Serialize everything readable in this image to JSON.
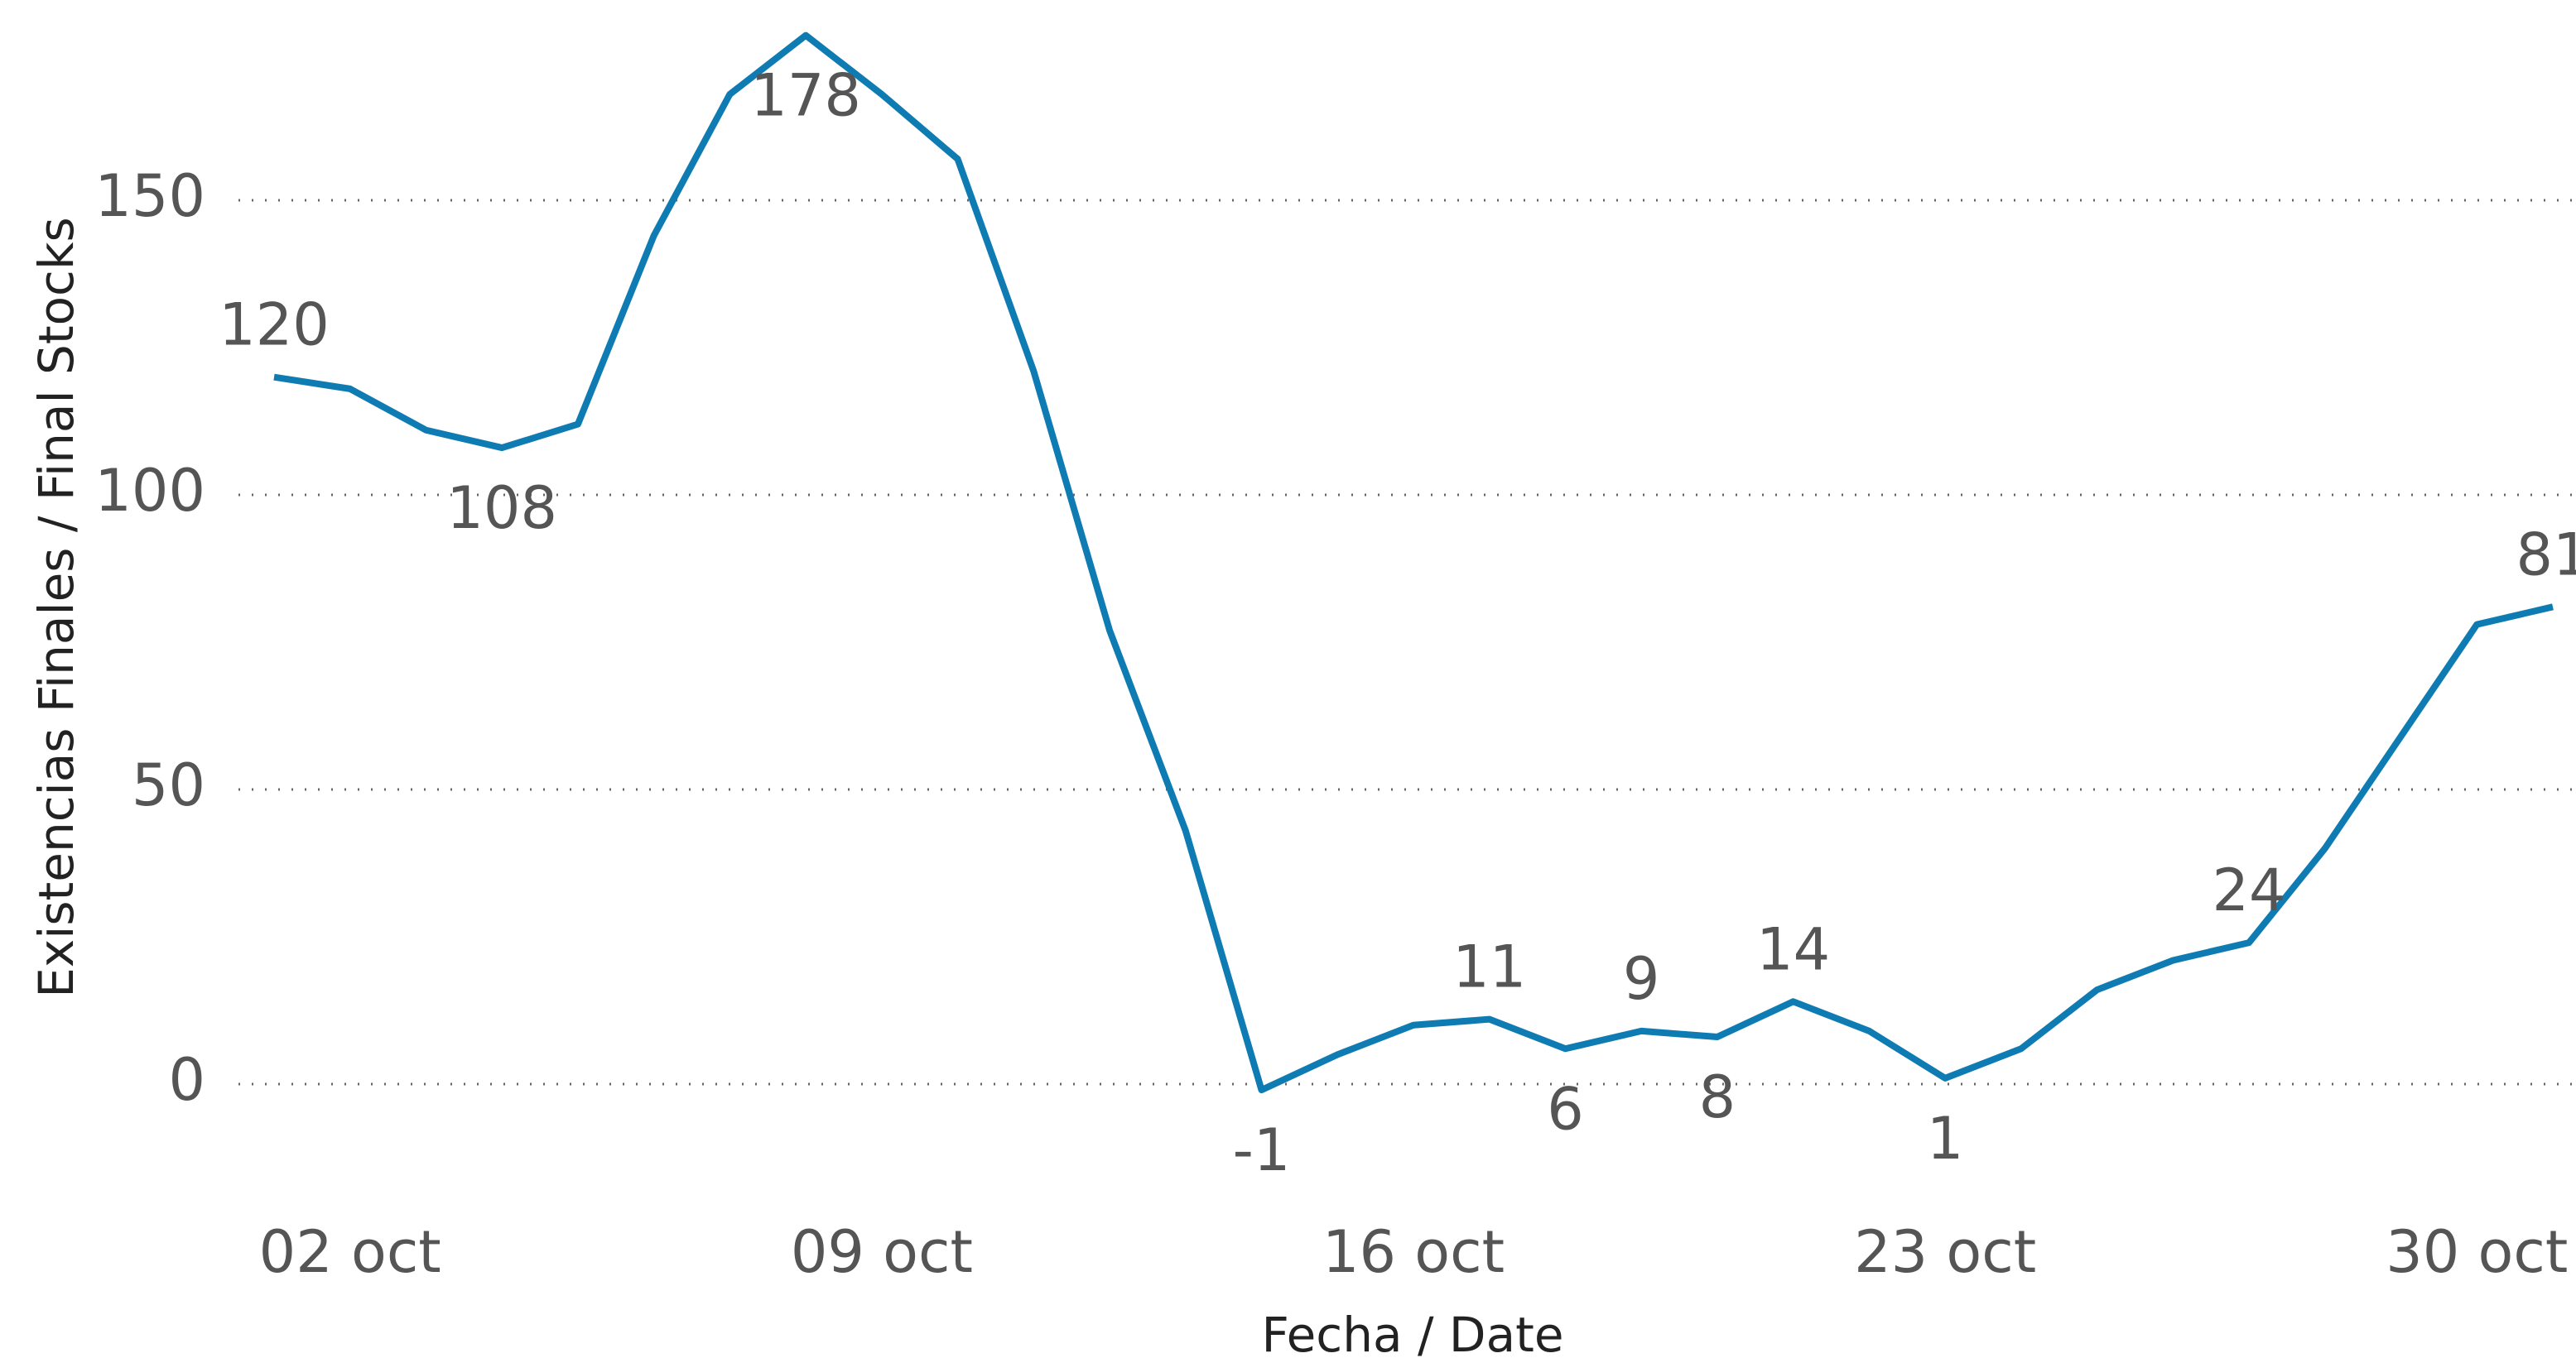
{
  "chart_data": {
    "type": "line",
    "x_label": "Fecha / Date",
    "y_label": "Existencias Finales / Final Stocks",
    "categories": [
      null,
      "02 oct",
      null,
      null,
      null,
      null,
      null,
      null,
      "09 oct",
      null,
      null,
      null,
      null,
      null,
      null,
      "16 oct",
      null,
      null,
      null,
      null,
      null,
      null,
      "23 oct",
      null,
      null,
      null,
      null,
      null,
      null,
      "30 oct",
      null
    ],
    "series": [
      {
        "name": "Existencias Finales / Final Stocks",
        "color": "#0f7bb3",
        "values": [
          120,
          118,
          111,
          108,
          112,
          144,
          168,
          178,
          168,
          157,
          121,
          77,
          43,
          -1,
          5,
          10,
          11,
          6,
          9,
          8,
          14,
          9,
          1,
          6,
          16,
          21,
          24,
          40,
          59,
          78,
          81
        ],
        "value_labels": [
          "120",
          null,
          null,
          "108",
          null,
          null,
          null,
          "178",
          null,
          null,
          null,
          null,
          null,
          "-1",
          null,
          null,
          "11",
          "6",
          "9",
          "8",
          "14",
          null,
          "1",
          null,
          null,
          null,
          "24",
          null,
          null,
          null,
          "81"
        ]
      }
    ],
    "ylim": [
      -17,
      184
    ],
    "yticks": [
      0,
      50,
      100,
      150
    ],
    "grid": true
  }
}
